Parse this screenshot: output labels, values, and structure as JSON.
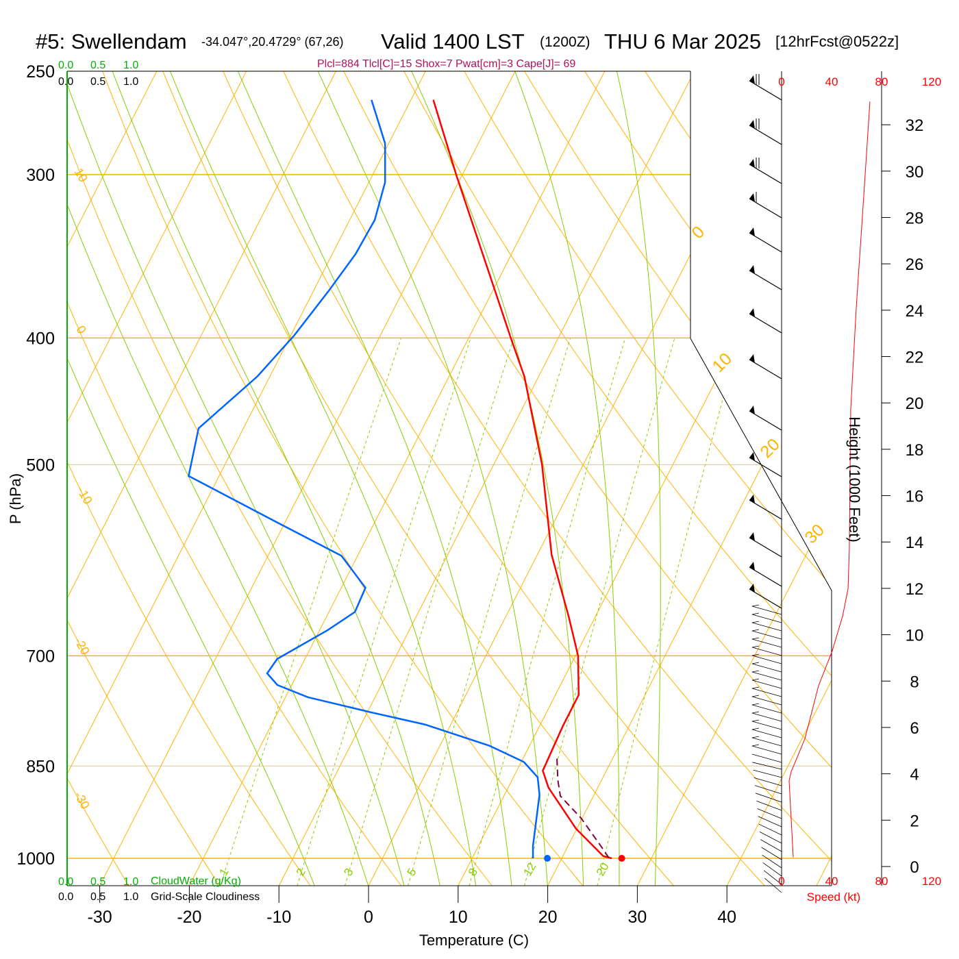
{
  "title": {
    "station": "#5: Swellendam",
    "coords": "-34.047°,20.4729° (67,26)",
    "valid": "Valid 1400 LST",
    "utc": "(1200Z)",
    "date": "THU 6 Mar 2025",
    "forecast": "[12hrFcst@0522z]"
  },
  "indices": "Plcl=884 Tlcl[C]=15 Shox=7 Pwat[cm]=3 Cape[J]= 69",
  "colors": {
    "temp": "#ff0000",
    "dewpoint": "#0064ff",
    "parcel": "#800040",
    "isotherm": "#ffb300",
    "moist": "#88cc00",
    "cloud": "#00b000"
  },
  "chart_data": {
    "type": "line",
    "subtype": "skew-T log-P",
    "xlabel": "Temperature (C)",
    "ylabel": "P (hPa)",
    "right_ylabel": "Height (1000 Feet)",
    "speed_label": "Speed (kt)",
    "x_ticks": [
      "-30",
      "-20",
      "-10",
      "0",
      "10",
      "20",
      "30",
      "40"
    ],
    "x_tick_values": [
      -30,
      -20,
      -10,
      0,
      10,
      20,
      30,
      40
    ],
    "p_ticks": [
      "250",
      "300",
      "400",
      "500",
      "700",
      "850",
      "1000"
    ],
    "p_tick_values": [
      250,
      300,
      400,
      500,
      700,
      850,
      1000
    ],
    "height_ticks": [
      "0",
      "2",
      "4",
      "6",
      "8",
      "10",
      "12",
      "14",
      "16",
      "18",
      "20",
      "22",
      "24",
      "26",
      "28",
      "30",
      "32"
    ],
    "speed_ticks": [
      "0",
      "40",
      "80",
      "120"
    ],
    "left_labels": [
      "10",
      "0",
      "-10",
      "-20",
      "-30"
    ],
    "right_labels": [
      "0",
      "10",
      "20",
      "30"
    ],
    "mixing_ratio_labels": [
      "1",
      "2",
      "3",
      "5",
      "8",
      "12",
      "20"
    ],
    "mixing_ratio_values": [
      1,
      2,
      3,
      5,
      8,
      12,
      20
    ],
    "cloud_scale": [
      "0.0",
      "0.5",
      "1.0"
    ],
    "cloudwater_label": "CloudWater (g/Kg)",
    "cloudiness_label": "Grid-Scale Cloudiness",
    "series": [
      {
        "name": "temperature",
        "p": [
          263,
          300,
          400,
          428,
          500,
          586,
          653,
          700,
          750,
          792,
          857,
          883,
          949,
          996,
          1000
        ],
        "t": [
          -37.5,
          -30.7,
          -15.3,
          -11.6,
          -4.6,
          1.6,
          7.0,
          10.3,
          12.6,
          12.6,
          12.9,
          14.5,
          19.9,
          24.5,
          25.6
        ]
      },
      {
        "name": "dewpoint",
        "p": [
          263,
          284,
          304,
          325,
          345,
          368,
          398,
          428,
          469,
          510,
          552,
          587,
          621,
          648,
          669,
          704,
          722,
          737,
          753,
          773,
          790,
          820,
          844,
          867,
          894,
          979,
          1000
        ],
        "t": [
          -44.4,
          -40.4,
          -38.2,
          -37.2,
          -37.4,
          -38.3,
          -39.6,
          -41.4,
          -45.0,
          -43.4,
          -31.3,
          -21.8,
          -17.3,
          -17.1,
          -19.1,
          -23.1,
          -23.4,
          -21.6,
          -17.5,
          -9.7,
          -2.9,
          5.5,
          10.3,
          12.7,
          13.9,
          16.1,
          16.8
        ]
      },
      {
        "name": "parcel",
        "p": [
          839,
          871,
          896,
          932,
          979,
          1000
        ],
        "t": [
          13.8,
          15.1,
          16.3,
          19.9,
          23.7,
          25.3
        ]
      }
    ],
    "surface": {
      "temperature": 26.7,
      "dewpoint": 18.4
    },
    "wind_speed_profile": {
      "height_kft": [
        0.4,
        3.7,
        4.1,
        5.5,
        7.8,
        9.3,
        10.8,
        12.0,
        13.7,
        19.7,
        24.1,
        28.5,
        33.0
      ],
      "speed_kt": [
        9.3,
        6.0,
        7.7,
        18.6,
        29.6,
        40.5,
        48.8,
        53.2,
        54.2,
        55.3,
        59.7,
        65.2,
        70.7
      ]
    },
    "xlim": [
      -34,
      36
    ],
    "plim": [
      1050,
      250
    ]
  }
}
